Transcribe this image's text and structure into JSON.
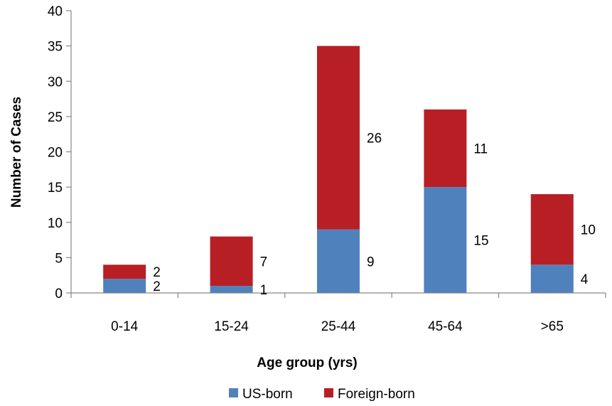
{
  "chart_data": {
    "type": "bar",
    "stacked": true,
    "categories": [
      "0-14",
      "15-24",
      "25-44",
      "45-64",
      ">65"
    ],
    "series": [
      {
        "name": "US-born",
        "values": [
          2,
          1,
          9,
          15,
          4
        ],
        "color": "#4f81bd"
      },
      {
        "name": "Foreign-born",
        "values": [
          2,
          7,
          26,
          11,
          10
        ],
        "color": "#b81f25"
      }
    ],
    "xlabel": "Age group (yrs)",
    "ylabel": "Number of Cases",
    "ylim": [
      0,
      40
    ],
    "yticks": [
      0,
      5,
      10,
      15,
      20,
      25,
      30,
      35,
      40
    ],
    "grid": false,
    "legend_position": "bottom"
  }
}
